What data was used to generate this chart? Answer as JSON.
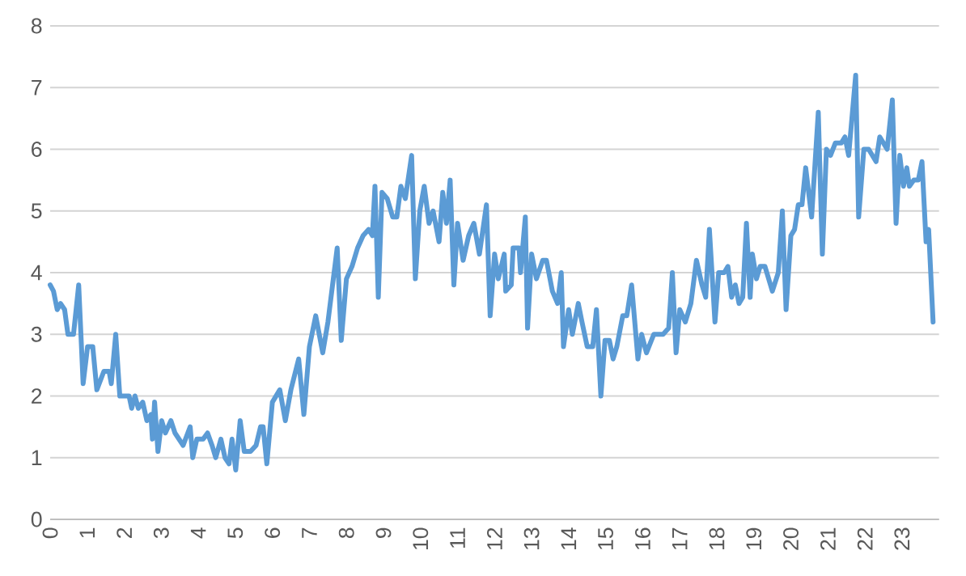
{
  "chart_data": {
    "type": "line",
    "x": [
      0,
      0.09,
      0.19,
      0.28,
      0.39,
      0.48,
      0.63,
      0.77,
      0.89,
      1.01,
      1.15,
      1.26,
      1.45,
      1.59,
      1.65,
      1.77,
      1.88,
      2.03,
      2.13,
      2.2,
      2.29,
      2.38,
      2.5,
      2.61,
      2.72,
      2.76,
      2.82,
      2.91,
      3.01,
      3.11,
      3.26,
      3.37,
      3.59,
      3.78,
      3.85,
      3.96,
      4.13,
      4.25,
      4.37,
      4.47,
      4.61,
      4.72,
      4.83,
      4.91,
      5.01,
      5.13,
      5.24,
      5.41,
      5.56,
      5.68,
      5.75,
      5.85,
      6.0,
      6.2,
      6.35,
      6.5,
      6.71,
      6.85,
      7.0,
      7.17,
      7.36,
      7.5,
      7.75,
      7.86,
      8.0,
      8.15,
      8.3,
      8.45,
      8.6,
      8.7,
      8.77,
      8.86,
      8.96,
      9.1,
      9.25,
      9.36,
      9.47,
      9.59,
      9.76,
      9.86,
      9.98,
      10.1,
      10.23,
      10.34,
      10.5,
      10.6,
      10.7,
      10.8,
      10.9,
      11.0,
      11.15,
      11.3,
      11.44,
      11.59,
      11.78,
      11.88,
      12.0,
      12.1,
      12.26,
      12.3,
      12.45,
      12.5,
      12.66,
      12.7,
      12.83,
      12.89,
      13.0,
      13.13,
      13.3,
      13.4,
      13.56,
      13.7,
      13.8,
      13.86,
      14.0,
      14.1,
      14.26,
      14.36,
      14.5,
      14.65,
      14.75,
      14.87,
      14.98,
      15.1,
      15.2,
      15.3,
      15.46,
      15.57,
      15.7,
      15.87,
      15.97,
      16.1,
      16.3,
      16.55,
      16.7,
      16.8,
      16.9,
      17.0,
      17.15,
      17.3,
      17.45,
      17.6,
      17.7,
      17.8,
      17.95,
      18.05,
      18.2,
      18.3,
      18.4,
      18.5,
      18.6,
      18.7,
      18.8,
      18.9,
      18.96,
      19.07,
      19.17,
      19.3,
      19.5,
      19.66,
      19.77,
      19.87,
      20.0,
      20.1,
      20.2,
      20.3,
      20.4,
      20.56,
      20.74,
      20.85,
      20.96,
      21.07,
      21.2,
      21.36,
      21.46,
      21.56,
      21.75,
      21.83,
      21.97,
      22.1,
      22.3,
      22.4,
      22.6,
      22.74,
      22.84,
      22.94,
      23.04,
      23.13,
      23.2,
      23.32,
      23.44,
      23.54,
      23.65,
      23.72,
      23.84
    ],
    "series": [
      {
        "color": "#5b9bd5",
        "values": [
          3.8,
          3.7,
          3.4,
          3.5,
          3.4,
          3.0,
          3.0,
          3.8,
          2.2,
          2.8,
          2.8,
          2.1,
          2.4,
          2.4,
          2.2,
          3.0,
          2.0,
          2.0,
          2.0,
          1.8,
          2.0,
          1.8,
          1.9,
          1.6,
          1.7,
          1.3,
          1.9,
          1.1,
          1.6,
          1.4,
          1.6,
          1.4,
          1.2,
          1.5,
          1.0,
          1.3,
          1.3,
          1.4,
          1.2,
          1.0,
          1.3,
          1.0,
          0.9,
          1.3,
          0.8,
          1.6,
          1.1,
          1.1,
          1.2,
          1.5,
          1.5,
          0.9,
          1.9,
          2.1,
          1.6,
          2.1,
          2.6,
          1.7,
          2.8,
          3.3,
          2.7,
          3.2,
          4.4,
          2.9,
          3.9,
          4.1,
          4.4,
          4.6,
          4.7,
          4.6,
          5.4,
          3.6,
          5.3,
          5.2,
          4.9,
          4.9,
          5.4,
          5.2,
          5.9,
          3.9,
          5.0,
          5.4,
          4.8,
          5.0,
          4.5,
          5.3,
          4.8,
          5.5,
          3.8,
          4.8,
          4.2,
          4.6,
          4.8,
          4.3,
          5.1,
          3.3,
          4.3,
          3.9,
          4.3,
          3.7,
          3.8,
          4.4,
          4.4,
          4.0,
          4.9,
          3.1,
          4.3,
          3.9,
          4.2,
          4.2,
          3.7,
          3.5,
          4.0,
          2.8,
          3.4,
          3.0,
          3.5,
          3.2,
          2.8,
          2.8,
          3.4,
          2.0,
          2.9,
          2.9,
          2.6,
          2.8,
          3.3,
          3.3,
          3.8,
          2.6,
          3.0,
          2.7,
          3.0,
          3.0,
          3.1,
          4.0,
          2.7,
          3.4,
          3.2,
          3.5,
          4.2,
          3.8,
          3.6,
          4.7,
          3.2,
          4.0,
          4.0,
          4.1,
          3.6,
          3.8,
          3.5,
          3.6,
          4.8,
          3.6,
          4.3,
          3.9,
          4.1,
          4.1,
          3.7,
          4.0,
          5.0,
          3.4,
          4.6,
          4.7,
          5.1,
          5.1,
          5.7,
          4.9,
          6.6,
          4.3,
          6.0,
          5.9,
          6.1,
          6.1,
          6.2,
          5.9,
          7.2,
          4.9,
          6.0,
          6.0,
          5.8,
          6.2,
          6.0,
          6.8,
          4.8,
          5.9,
          5.4,
          5.7,
          5.4,
          5.5,
          5.5,
          5.8,
          4.5,
          4.7,
          3.2
        ]
      }
    ],
    "xlim": [
      0,
      24
    ],
    "xticks": [
      0,
      1,
      2,
      3,
      4,
      5,
      6,
      7,
      8,
      9,
      10,
      11,
      12,
      13,
      14,
      15,
      16,
      17,
      18,
      19,
      20,
      21,
      22,
      23
    ],
    "ylim": [
      0,
      8
    ],
    "yticks": [
      0,
      1,
      2,
      3,
      4,
      5,
      6,
      7,
      8
    ],
    "grid": "y"
  }
}
